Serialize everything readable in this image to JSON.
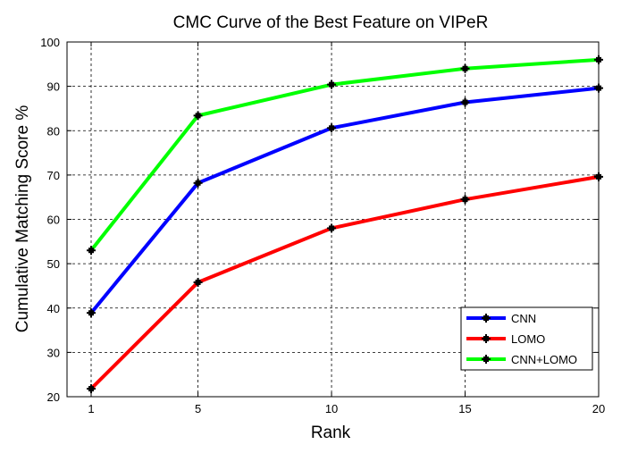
{
  "chart_data": {
    "type": "line",
    "title": "CMC Curve of the Best Feature on VIPeR",
    "xlabel": "Rank",
    "ylabel": "Cumulative Matching Score %",
    "x": [
      1,
      5,
      10,
      15,
      20
    ],
    "xlim": [
      0,
      20
    ],
    "ylim": [
      20,
      100
    ],
    "xticks": [
      1,
      5,
      10,
      15,
      20
    ],
    "yticks": [
      20,
      30,
      40,
      50,
      60,
      70,
      80,
      90,
      100
    ],
    "grid": true,
    "legend_position": "bottom-right",
    "series": [
      {
        "name": "CNN",
        "color": "#0000ff",
        "values": [
          38.9,
          68.2,
          80.6,
          86.4,
          89.6
        ]
      },
      {
        "name": "LOMO",
        "color": "#ff0000",
        "values": [
          21.8,
          45.8,
          58.0,
          64.5,
          69.6
        ]
      },
      {
        "name": "CNN+LOMO",
        "color": "#00ff00",
        "values": [
          53.0,
          83.4,
          90.4,
          94.0,
          96.0
        ]
      }
    ]
  }
}
